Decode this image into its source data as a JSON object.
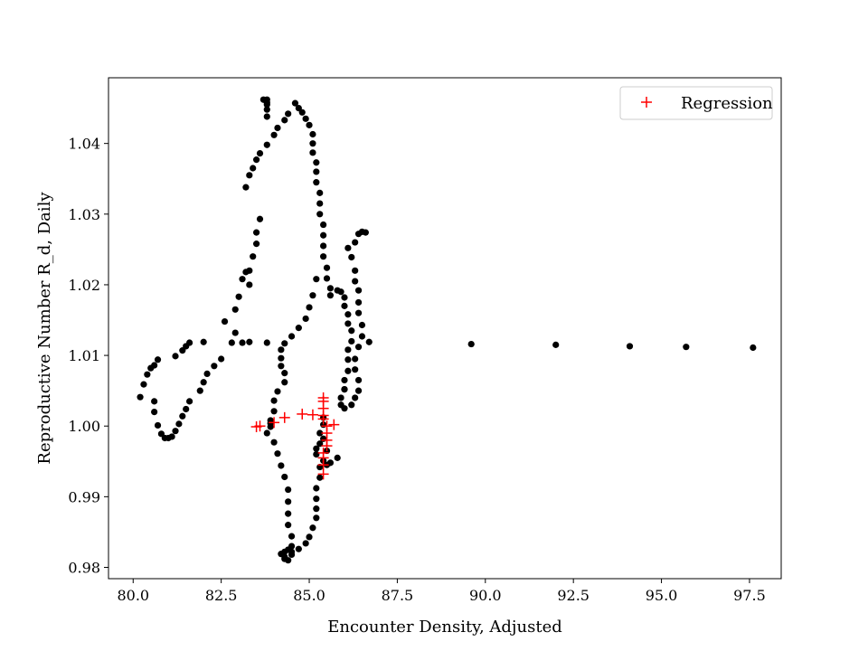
{
  "chart_data": {
    "type": "scatter",
    "title": "",
    "xlabel": "Encounter Density, Adjusted",
    "ylabel": "Reproductive Number R_d, Daily",
    "xlim": [
      79.3,
      98.4
    ],
    "ylim": [
      0.9784,
      1.0493
    ],
    "xticks": [
      80.0,
      82.5,
      85.0,
      87.5,
      90.0,
      92.5,
      95.0,
      97.5
    ],
    "xtick_labels": [
      "80.0",
      "82.5",
      "85.0",
      "87.5",
      "90.0",
      "92.5",
      "95.0",
      "97.5"
    ],
    "yticks": [
      0.98,
      0.99,
      1.0,
      1.01,
      1.02,
      1.03,
      1.04
    ],
    "ytick_labels": [
      "0.98",
      "0.99",
      "1.00",
      "1.01",
      "1.02",
      "1.03",
      "1.04"
    ],
    "grid": false,
    "legend_position": "top-right",
    "series": [
      {
        "marker": "circle",
        "color": "#000000",
        "points": [
          [
            80.2,
            1.0041
          ],
          [
            80.3,
            1.0059
          ],
          [
            80.4,
            1.0073
          ],
          [
            80.5,
            1.0082
          ],
          [
            80.6,
            1.0086
          ],
          [
            80.7,
            1.0094
          ],
          [
            80.6,
            1.0035
          ],
          [
            80.6,
            1.002
          ],
          [
            80.7,
            1.0001
          ],
          [
            80.8,
            0.9989
          ],
          [
            80.9,
            0.9983
          ],
          [
            81.0,
            0.9983
          ],
          [
            81.1,
            0.9985
          ],
          [
            81.2,
            0.9993
          ],
          [
            81.3,
            1.0003
          ],
          [
            81.4,
            1.0014
          ],
          [
            81.5,
            1.0024
          ],
          [
            81.6,
            1.0035
          ],
          [
            81.2,
            1.0099
          ],
          [
            81.4,
            1.0107
          ],
          [
            81.5,
            1.0113
          ],
          [
            81.6,
            1.0118
          ],
          [
            82.0,
            1.0119
          ],
          [
            82.1,
            1.0074
          ],
          [
            82.0,
            1.0062
          ],
          [
            81.9,
            1.005
          ],
          [
            82.3,
            1.0085
          ],
          [
            82.5,
            1.0095
          ],
          [
            82.6,
            1.0148
          ],
          [
            82.8,
            1.0118
          ],
          [
            82.9,
            1.0132
          ],
          [
            82.9,
            1.0165
          ],
          [
            83.0,
            1.0183
          ],
          [
            83.1,
            1.0208
          ],
          [
            83.2,
            1.0218
          ],
          [
            83.2,
            1.0338
          ],
          [
            83.3,
            1.0355
          ],
          [
            83.4,
            1.0365
          ],
          [
            83.5,
            1.0377
          ],
          [
            83.6,
            1.0386
          ],
          [
            83.6,
            1.0293
          ],
          [
            83.5,
            1.0274
          ],
          [
            83.5,
            1.0258
          ],
          [
            83.4,
            1.024
          ],
          [
            83.3,
            1.022
          ],
          [
            83.3,
            1.02
          ],
          [
            83.3,
            1.0119
          ],
          [
            83.1,
            1.0118
          ],
          [
            83.8,
            1.0458
          ],
          [
            83.8,
            1.0462
          ],
          [
            83.7,
            1.0462
          ],
          [
            83.8,
            1.0455
          ],
          [
            83.8,
            1.0448
          ],
          [
            83.8,
            1.0438
          ],
          [
            83.8,
            1.0398
          ],
          [
            84.0,
            1.0412
          ],
          [
            84.1,
            1.0422
          ],
          [
            84.3,
            1.0433
          ],
          [
            84.4,
            1.0442
          ],
          [
            84.6,
            1.0457
          ],
          [
            84.7,
            1.045
          ],
          [
            84.8,
            1.0444
          ],
          [
            84.9,
            1.0435
          ],
          [
            85.0,
            1.0426
          ],
          [
            85.1,
            1.0413
          ],
          [
            85.1,
            1.04
          ],
          [
            85.1,
            1.0387
          ],
          [
            85.2,
            1.0373
          ],
          [
            85.2,
            1.036
          ],
          [
            85.2,
            1.0345
          ],
          [
            85.3,
            1.033
          ],
          [
            85.3,
            1.0315
          ],
          [
            85.3,
            1.03
          ],
          [
            85.4,
            1.0285
          ],
          [
            85.4,
            1.027
          ],
          [
            85.4,
            1.0255
          ],
          [
            85.4,
            1.024
          ],
          [
            85.5,
            1.0224
          ],
          [
            85.5,
            1.0209
          ],
          [
            85.6,
            1.0195
          ],
          [
            85.6,
            1.0185
          ],
          [
            85.2,
            1.0208
          ],
          [
            85.1,
            1.0185
          ],
          [
            85.0,
            1.0168
          ],
          [
            84.9,
            1.0152
          ],
          [
            84.7,
            1.0139
          ],
          [
            84.5,
            1.0127
          ],
          [
            84.3,
            1.0117
          ],
          [
            84.2,
            1.0108
          ],
          [
            84.2,
            1.0096
          ],
          [
            84.2,
            1.0085
          ],
          [
            84.3,
            1.0075
          ],
          [
            84.3,
            1.0062
          ],
          [
            84.1,
            1.0049
          ],
          [
            84.0,
            1.0036
          ],
          [
            84.0,
            1.0021
          ],
          [
            83.9,
            1.0008
          ],
          [
            83.9,
            0.9999
          ],
          [
            83.8,
            0.999
          ],
          [
            83.8,
            1.0118
          ],
          [
            83.9,
            1.0004
          ],
          [
            84.0,
            0.9977
          ],
          [
            84.1,
            0.9961
          ],
          [
            84.2,
            0.9944
          ],
          [
            84.3,
            0.9928
          ],
          [
            84.4,
            0.991
          ],
          [
            84.4,
            0.9893
          ],
          [
            84.4,
            0.9876
          ],
          [
            84.4,
            0.986
          ],
          [
            84.5,
            0.9844
          ],
          [
            84.5,
            0.983
          ],
          [
            84.5,
            0.9818
          ],
          [
            84.4,
            0.981
          ],
          [
            84.3,
            0.9812
          ],
          [
            84.3,
            0.9815
          ],
          [
            84.2,
            0.9819
          ],
          [
            84.3,
            0.9822
          ],
          [
            84.4,
            0.9825
          ],
          [
            84.5,
            0.9822
          ],
          [
            84.7,
            0.9826
          ],
          [
            84.9,
            0.9834
          ],
          [
            85.0,
            0.9843
          ],
          [
            85.1,
            0.9856
          ],
          [
            85.2,
            0.987
          ],
          [
            85.2,
            0.9883
          ],
          [
            85.2,
            0.9897
          ],
          [
            85.2,
            0.9912
          ],
          [
            85.3,
            0.9927
          ],
          [
            85.3,
            0.9942
          ],
          [
            85.2,
            0.996
          ],
          [
            85.2,
            0.9968
          ],
          [
            85.3,
            0.9975
          ],
          [
            85.4,
            0.9982
          ],
          [
            85.3,
            0.999
          ],
          [
            85.4,
            1.0002
          ],
          [
            85.4,
            1.0012
          ],
          [
            85.4,
            0.9951
          ],
          [
            85.5,
            0.9945
          ],
          [
            85.6,
            0.9948
          ],
          [
            85.8,
            0.9955
          ],
          [
            85.5,
            0.9965
          ],
          [
            85.8,
            1.0192
          ],
          [
            85.9,
            1.019
          ],
          [
            86.0,
            1.0182
          ],
          [
            86.0,
            1.017
          ],
          [
            86.1,
            1.0158
          ],
          [
            86.1,
            1.0145
          ],
          [
            86.2,
            1.0135
          ],
          [
            86.2,
            1.012
          ],
          [
            86.1,
            1.0108
          ],
          [
            86.1,
            1.0094
          ],
          [
            86.1,
            1.0078
          ],
          [
            86.0,
            1.0065
          ],
          [
            86.0,
            1.0052
          ],
          [
            85.9,
            1.004
          ],
          [
            85.9,
            1.003
          ],
          [
            86.0,
            1.0025
          ],
          [
            86.0,
            1.0052
          ],
          [
            86.3,
            1.026
          ],
          [
            86.4,
            1.0272
          ],
          [
            86.5,
            1.0275
          ],
          [
            86.6,
            1.0274
          ],
          [
            86.1,
            1.0252
          ],
          [
            86.2,
            1.0239
          ],
          [
            86.3,
            1.022
          ],
          [
            86.3,
            1.0205
          ],
          [
            86.4,
            1.0192
          ],
          [
            86.4,
            1.0175
          ],
          [
            86.4,
            1.016
          ],
          [
            86.5,
            1.0143
          ],
          [
            86.5,
            1.0127
          ],
          [
            86.4,
            1.0112
          ],
          [
            86.3,
            1.0095
          ],
          [
            86.3,
            1.008
          ],
          [
            86.4,
            1.0065
          ],
          [
            86.4,
            1.005
          ],
          [
            86.3,
            1.004
          ],
          [
            86.2,
            1.003
          ],
          [
            86.7,
            1.0119
          ],
          [
            89.6,
            1.0116
          ],
          [
            92.0,
            1.0115
          ],
          [
            94.1,
            1.0113
          ],
          [
            95.7,
            1.0112
          ],
          [
            97.6,
            1.0111
          ]
        ]
      },
      {
        "name": "Regression",
        "marker": "plus",
        "color": "#ff0000",
        "points": [
          [
            83.5,
            0.9999
          ],
          [
            83.6,
            1.0
          ],
          [
            84.0,
            1.0005
          ],
          [
            84.3,
            1.0012
          ],
          [
            84.8,
            1.0017
          ],
          [
            85.1,
            1.0016
          ],
          [
            85.4,
            1.0015
          ],
          [
            85.4,
            1.004
          ],
          [
            85.4,
            1.0035
          ],
          [
            85.4,
            1.0025
          ],
          [
            85.4,
            1.001
          ],
          [
            85.5,
            1.0
          ],
          [
            85.5,
            0.999
          ],
          [
            85.5,
            0.998
          ],
          [
            85.5,
            0.9972
          ],
          [
            85.4,
            0.9962
          ],
          [
            85.4,
            0.9955
          ],
          [
            85.4,
            0.9945
          ],
          [
            85.4,
            0.9932
          ],
          [
            85.7,
            1.0002
          ]
        ]
      }
    ]
  }
}
